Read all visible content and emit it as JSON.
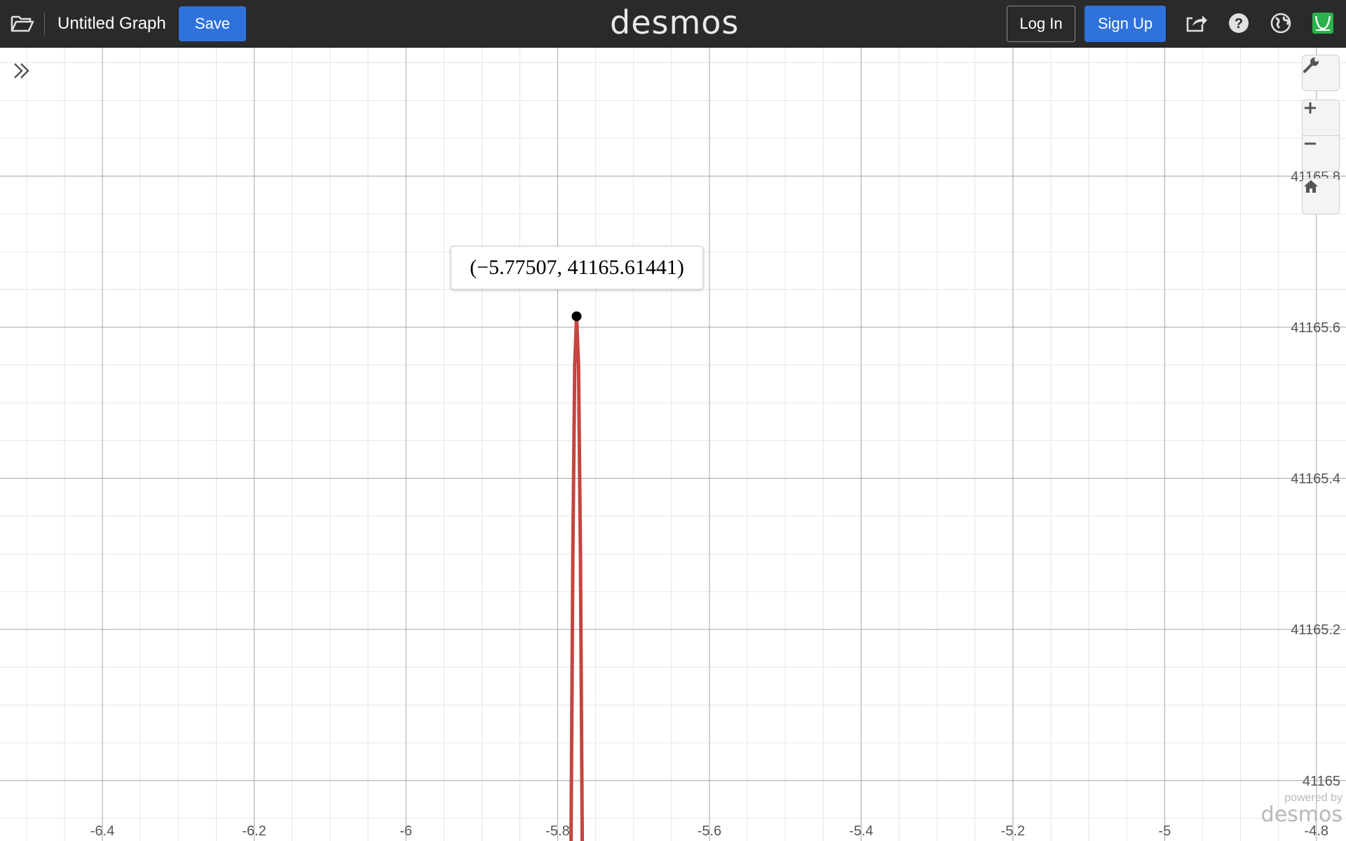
{
  "header": {
    "title": "Untitled Graph",
    "save_label": "Save",
    "logo_text": "desmos",
    "login_label": "Log In",
    "signup_label": "Sign Up",
    "icons": [
      "folder-open-icon",
      "share-icon",
      "help-icon",
      "globe-icon",
      "accessibility-icon"
    ]
  },
  "graph": {
    "tooltip_text": "(−5.77507, 41165.61441)",
    "powered_by": "powered by",
    "powered_logo": "desmos",
    "controls": [
      "wrench-icon",
      "zoom-in-icon",
      "zoom-out-icon",
      "home-icon"
    ],
    "curve_color": "#c74440",
    "accent_color": "#2f72dc"
  },
  "chart_data": {
    "type": "line",
    "title": "",
    "xlabel": "",
    "ylabel": "",
    "x_ticks": [
      "-6.4",
      "-6.2",
      "-6",
      "-5.8",
      "-5.6",
      "-5.4",
      "-5.2",
      "-5",
      "-4.8"
    ],
    "y_ticks": [
      "41165",
      "41165.2",
      "41165.4",
      "41165.6",
      "41165.8"
    ],
    "xlim": [
      -6.535,
      -4.761
    ],
    "ylim": [
      41164.92,
      41165.97
    ],
    "grid": true,
    "series": [
      {
        "color": "#c74440",
        "x": [
          -5.7825,
          -5.78,
          -5.7775,
          -5.77507,
          -5.7725,
          -5.77,
          -5.7675
        ],
        "y": [
          41164.9,
          41165.3,
          41165.55,
          41165.61441,
          41165.55,
          41165.3,
          41164.9
        ]
      }
    ],
    "highlight_point": {
      "x": -5.77507,
      "y": 41165.61441
    }
  }
}
